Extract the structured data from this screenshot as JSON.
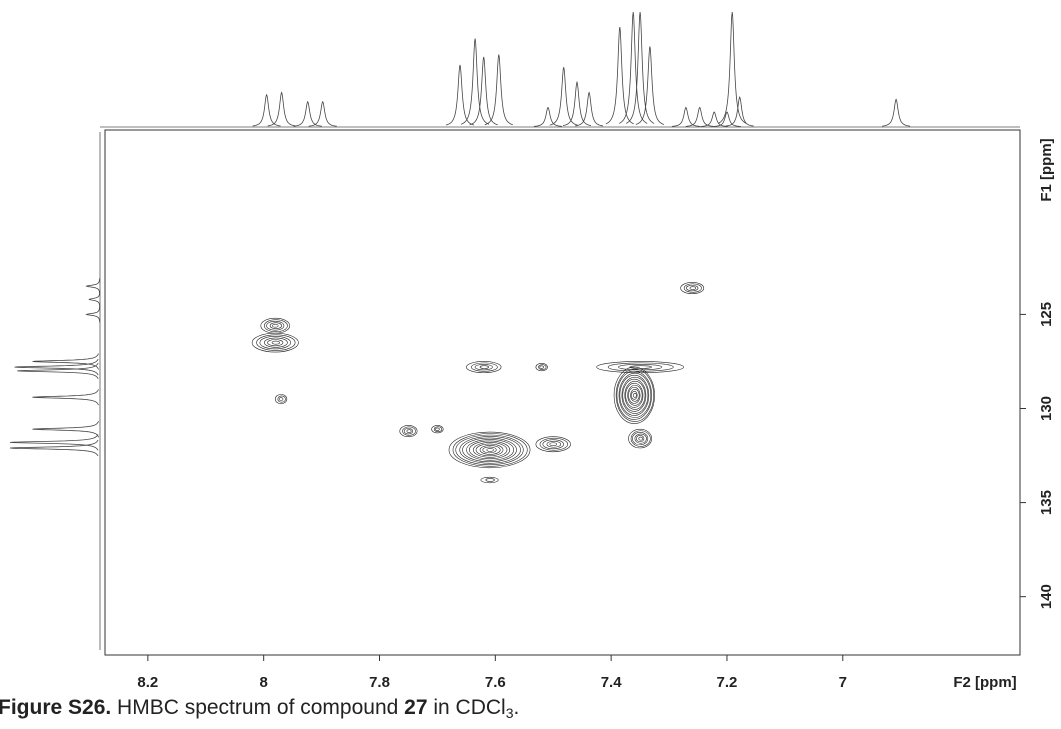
{
  "chart_data": {
    "type": "contour",
    "x_label": "F2 [ppm]",
    "y_label": "F1 [ppm]",
    "xlim": [
      8.274,
      6.694
    ],
    "ylim": [
      115.2,
      143.1
    ],
    "xticks": [
      8.2,
      8.0,
      7.8,
      7.6,
      7.4,
      7.2,
      7.0
    ],
    "yticks": [
      125,
      130,
      135,
      140
    ],
    "color": "#222222",
    "peaks": [
      {
        "x": 7.98,
        "y": 125.6,
        "x_width": 0.05,
        "y_width": 0.8
      },
      {
        "x": 7.98,
        "y": 126.5,
        "x_width": 0.08,
        "y_width": 1.0
      },
      {
        "x": 7.97,
        "y": 129.5,
        "x_width": 0.02,
        "y_width": 0.5
      },
      {
        "x": 7.62,
        "y": 127.8,
        "x_width": 0.06,
        "y_width": 0.6
      },
      {
        "x": 7.52,
        "y": 127.8,
        "x_width": 0.02,
        "y_width": 0.4
      },
      {
        "x": 7.35,
        "y": 127.8,
        "x_width": 0.15,
        "y_width": 0.6
      },
      {
        "x": 7.36,
        "y": 129.3,
        "x_width": 0.07,
        "y_width": 3.0
      },
      {
        "x": 7.35,
        "y": 131.6,
        "x_width": 0.04,
        "y_width": 1.0
      },
      {
        "x": 7.5,
        "y": 131.9,
        "x_width": 0.06,
        "y_width": 0.8
      },
      {
        "x": 7.61,
        "y": 132.2,
        "x_width": 0.14,
        "y_width": 1.9
      },
      {
        "x": 7.7,
        "y": 131.1,
        "x_width": 0.02,
        "y_width": 0.4
      },
      {
        "x": 7.75,
        "y": 131.2,
        "x_width": 0.03,
        "y_width": 0.6
      },
      {
        "x": 7.61,
        "y": 133.8,
        "x_width": 0.03,
        "y_width": 0.3
      },
      {
        "x": 7.26,
        "y": 123.6,
        "x_width": 0.04,
        "y_width": 0.6
      }
    ],
    "f2_projection": {
      "x": [
        7.995,
        7.969,
        7.924,
        7.898,
        7.661,
        7.635,
        7.62,
        7.594,
        7.509,
        7.482,
        7.459,
        7.438,
        7.385,
        7.362,
        7.35,
        7.333,
        7.271,
        7.247,
        7.222,
        7.2,
        7.191,
        7.178,
        6.908
      ],
      "values": [
        28,
        30,
        22,
        22,
        54,
        77,
        61,
        63,
        17,
        52,
        39,
        30,
        87,
        100,
        100,
        70,
        17,
        17,
        13,
        13,
        100,
        26,
        24
      ]
    },
    "f1_projection": {
      "y": [
        123.5,
        124.2,
        125.0,
        127.5,
        127.8,
        128.0,
        129.4,
        131.1,
        131.8,
        132.1
      ],
      "values": [
        15,
        12,
        15,
        75,
        95,
        92,
        75,
        75,
        100,
        100
      ]
    },
    "caption": {
      "label": "Figure S26.",
      "text": " HMBC spectrum of compound ",
      "compound": "27",
      "solvent": " in CDCl",
      "subscript": "3",
      "end": "."
    }
  }
}
